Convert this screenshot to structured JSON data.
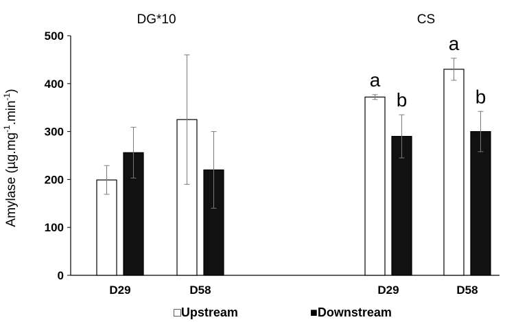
{
  "chart_data": {
    "type": "bar",
    "ylabel": {
      "base": "Amylase (µg.mg",
      "sup1": "-1",
      "mid": ".min",
      "sup2": "-1",
      "end": ")"
    },
    "ylim": [
      0,
      500
    ],
    "yticks": [
      0,
      100,
      200,
      300,
      400,
      500
    ],
    "grid": false,
    "legend_position": "bottom",
    "series": [
      {
        "name": "Upstream",
        "fill": "#ffffff",
        "stroke": "#000000"
      },
      {
        "name": "Downstream",
        "fill": "#111111",
        "stroke": "#000000"
      }
    ],
    "groups": [
      {
        "title": "DG*10",
        "categories": [
          {
            "label": "D29",
            "values": [
              199,
              256
            ],
            "errors": [
              30,
              53
            ],
            "sig": [
              "",
              ""
            ]
          },
          {
            "label": "D58",
            "values": [
              325,
              220
            ],
            "errors": [
              135,
              80
            ],
            "sig": [
              "",
              ""
            ]
          }
        ]
      },
      {
        "title": "CS",
        "categories": [
          {
            "label": "D29",
            "values": [
              372,
              290
            ],
            "errors": [
              5,
              45
            ],
            "sig": [
              "a",
              "b"
            ]
          },
          {
            "label": "D58",
            "values": [
              430,
              300
            ],
            "errors": [
              23,
              42
            ],
            "sig": [
              "a",
              "b"
            ]
          }
        ]
      }
    ],
    "legend_symbols": [
      "□",
      "■"
    ]
  }
}
